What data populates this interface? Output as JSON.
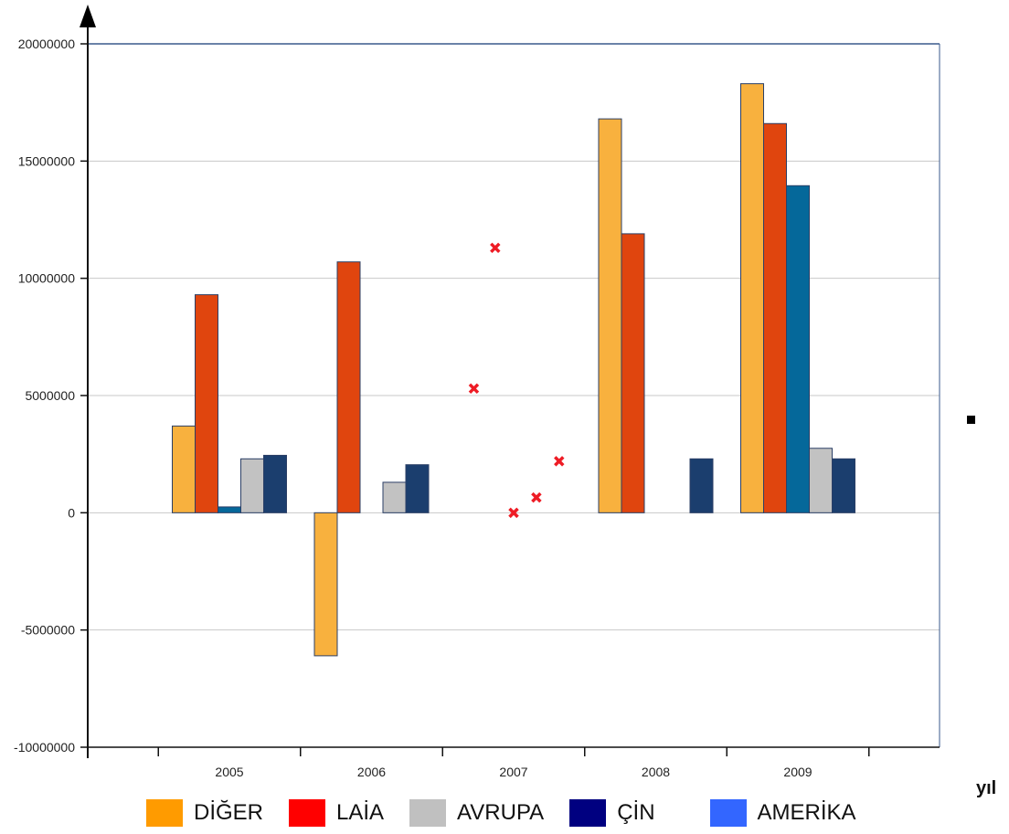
{
  "chart_data": {
    "type": "bar",
    "categories": [
      "2005",
      "2006",
      "2007",
      "2008",
      "2009"
    ],
    "ylim": [
      -10000000,
      20000000
    ],
    "yticks": [
      "20000000",
      "15000000",
      "10000000",
      "5000000",
      "0",
      "-5000000",
      "-10000000"
    ],
    "xlabel": "yıl",
    "series": [
      {
        "name": "DİĞER",
        "color": "#f8b13e",
        "values": [
          3700000,
          -6100000,
          null,
          16800000,
          18300000
        ]
      },
      {
        "name": "LAİA",
        "color": "#e0450e",
        "values": [
          9300000,
          10700000,
          null,
          11900000,
          16600000
        ]
      },
      {
        "name": "AMERİKA",
        "color": "#05689a",
        "values": [
          250000,
          null,
          null,
          null,
          13950000
        ]
      },
      {
        "name": "AVRUPA",
        "color": "#c2c2c2",
        "values": [
          2300000,
          1300000,
          null,
          null,
          2750000
        ]
      },
      {
        "name": "ÇİN",
        "color": "#1b3e6e",
        "values": [
          2450000,
          2050000,
          null,
          2300000,
          2300000
        ]
      }
    ],
    "markers": {
      "color": "#ee1c25",
      "points": [
        {
          "x": 2006.72,
          "y": 5300000
        },
        {
          "x": 2006.87,
          "y": 11300000
        },
        {
          "x": 2007.0,
          "y": 0
        },
        {
          "x": 2007.16,
          "y": 650000
        },
        {
          "x": 2007.32,
          "y": 2200000
        }
      ]
    }
  },
  "legend": {
    "items": [
      {
        "label": "DİĞER",
        "color": "#ff9b00"
      },
      {
        "label": "LAİA",
        "color": "#ff0000"
      },
      {
        "label": "AVRUPA",
        "color": "#c0c0c0"
      },
      {
        "label": "ÇİN",
        "color": "#000080"
      },
      {
        "label": "AMERİKA",
        "color": "#3366ff"
      }
    ]
  }
}
